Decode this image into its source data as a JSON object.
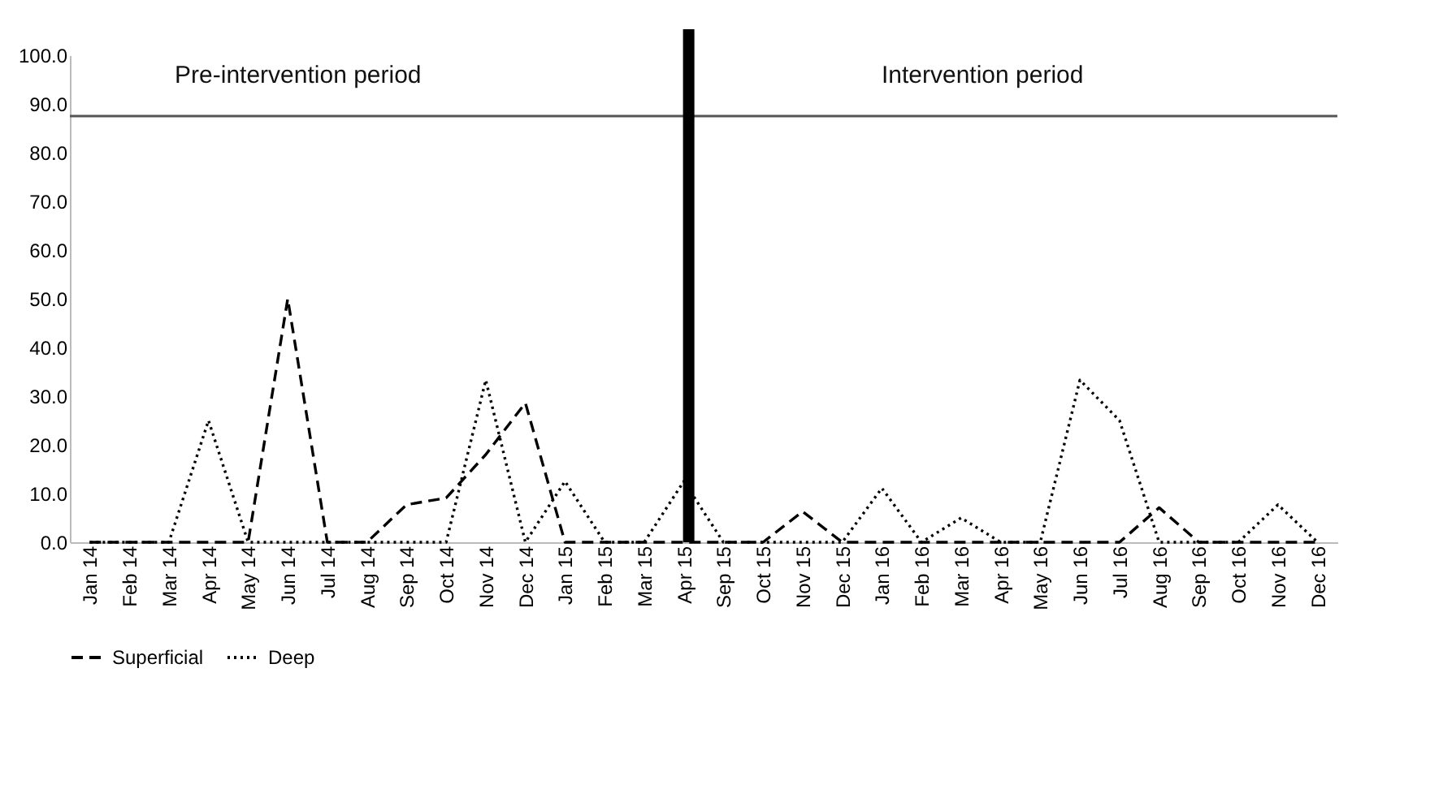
{
  "chart_data": {
    "type": "line",
    "categories": [
      "Jan 14",
      "Feb 14",
      "Mar 14",
      "Apr 14",
      "May 14",
      "Jun 14",
      "Jul 14",
      "Aug 14",
      "Sep 14",
      "Oct 14",
      "Nov 14",
      "Dec 14",
      "Jan 15",
      "Feb 15",
      "Mar 15",
      "Apr 15",
      "Sep 15",
      "Oct 15",
      "Nov 15",
      "Dec 15",
      "Jan 16",
      "Feb 16",
      "Mar 16",
      "Apr 16",
      "May 16",
      "Jun 16",
      "Jul 16",
      "Aug 16",
      "Sep 16",
      "Oct 16",
      "Nov 16",
      "Dec 16"
    ],
    "series": [
      {
        "name": "Superficial",
        "color": "#000000",
        "line_style": "dashed",
        "values": [
          0,
          0,
          0,
          0,
          0,
          50,
          0,
          0,
          7.7,
          9.1,
          18,
          28.6,
          0,
          0,
          0,
          0,
          0,
          0,
          6.3,
          0,
          0,
          0,
          0,
          0,
          0,
          0,
          0,
          7.1,
          0,
          0,
          0,
          0
        ]
      },
      {
        "name": "Deep",
        "color": "#000000",
        "line_style": "dotted",
        "values": [
          0,
          0,
          0,
          25,
          0,
          0,
          0,
          0,
          0,
          0,
          33.3,
          0,
          12.5,
          0,
          0,
          12.5,
          0,
          0,
          0,
          0,
          11.1,
          0,
          5,
          0,
          0,
          33.3,
          25,
          0,
          0,
          0,
          7.7,
          0
        ]
      }
    ],
    "ylim": [
      0,
      100
    ],
    "yticks": [
      {
        "value": 0,
        "label": "0.0"
      },
      {
        "value": 10,
        "label": "10.0"
      },
      {
        "value": 20,
        "label": "20.0"
      },
      {
        "value": 30,
        "label": "30.0"
      },
      {
        "value": 40,
        "label": "40.0"
      },
      {
        "value": 50,
        "label": "50.0"
      },
      {
        "value": 60,
        "label": "60.0"
      },
      {
        "value": 70,
        "label": "70.0"
      },
      {
        "value": 80,
        "label": "80.0"
      },
      {
        "value": 90,
        "label": "90.0"
      },
      {
        "value": 100,
        "label": "100.0"
      }
    ],
    "ref_lines": [
      {
        "axis": "y",
        "value": 87.5,
        "color": "#555555"
      },
      {
        "axis": "x",
        "value": "Apr 15",
        "color": "#000000"
      }
    ],
    "annotations": [
      "Pre-intervention period",
      "Intervention period"
    ],
    "grid": false,
    "legend": "bottom",
    "marker": "none"
  }
}
